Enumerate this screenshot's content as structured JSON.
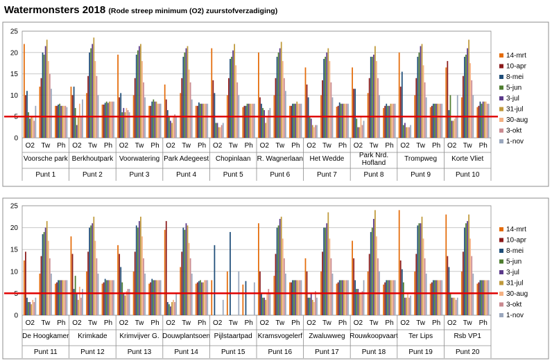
{
  "heading": {
    "title": "Watermonsters 2018",
    "subtitle": "(Rode streep minimum (O2) zuurstofverzadiging)"
  },
  "colors": {
    "series": [
      "#E46C0A",
      "#8B1A1A",
      "#1F4E79",
      "#4E7D2F",
      "#5B3A8A",
      "#C09A3C",
      "#F4B183",
      "#C98A90",
      "#9AA7BD"
    ],
    "threshold": "#E00000"
  },
  "chart_data": [
    {
      "type": "bar",
      "title": "Watermonsters 2018",
      "subtitle": "(Rode streep minimum (O2) zuurstofverzadiging)",
      "ylim": [
        0,
        25
      ],
      "yticks": [
        0,
        5,
        10,
        15,
        20,
        25
      ],
      "grid": true,
      "legend": "right",
      "threshold": 5,
      "series_names": [
        "14-mrt",
        "10-apr",
        "8-mei",
        "5-jun",
        "3-jul",
        "31-jul",
        "30-aug",
        "3-okt",
        "1-nov"
      ],
      "measures": [
        "O2",
        "Tw",
        "Ph"
      ],
      "locations": [
        {
          "name": "Voorsche park",
          "punt": "Punt 1",
          "values": {
            "O2": [
              22,
              10,
              11,
              6,
              4.5,
              5,
              5,
              4,
              7.5
            ],
            "Tw": [
              12,
              14,
              20,
              19.5,
              21.5,
              23,
              18,
              15,
              11.5
            ],
            "Ph": [
              7.5,
              7.5,
              7.8,
              8,
              7.5,
              7.5,
              7.5,
              7.5,
              7.2
            ]
          }
        },
        {
          "name": "Berkhoutpark",
          "punt": "Punt 2",
          "values": {
            "O2": [
              12,
              10,
              12,
              7,
              3,
              5,
              8,
              5,
              9
            ],
            "Tw": [
              10.5,
              14.5,
              20,
              21,
              22,
              23.5,
              18,
              14.5,
              10
            ],
            "Ph": [
              7.8,
              7.8,
              8.2,
              8.5,
              8.2,
              8.5,
              8.5,
              8.5,
              8.5
            ]
          }
        },
        {
          "name": "Voorwatering",
          "punt": "Punt 3",
          "values": {
            "O2": [
              19.5,
              9.5,
              10.5,
              6,
              7,
              6,
              7,
              6.5,
              6
            ],
            "Tw": [
              10,
              14,
              19.5,
              20.5,
              21.5,
              22,
              18,
              13,
              9.5
            ],
            "Ph": [
              7.5,
              7.5,
              8.5,
              9,
              8.5,
              8.5,
              8,
              8,
              8
            ]
          }
        },
        {
          "name": "Park Adegeest",
          "punt": "Punt 4",
          "values": {
            "O2": [
              12.5,
              9,
              6.5,
              5,
              4,
              3.5,
              5,
              5.5,
              5
            ],
            "Tw": [
              10.5,
              14,
              19,
              20,
              21,
              21.5,
              16,
              13,
              9
            ],
            "Ph": [
              7.5,
              7.5,
              8.3,
              8,
              8,
              8,
              8,
              8,
              8
            ]
          }
        },
        {
          "name": "Chopinlaan",
          "punt": "Punt 5",
          "values": {
            "O2": [
              21,
              13.5,
              10.5,
              3.5,
              3.5,
              2.5,
              2.5,
              3,
              3.5
            ],
            " Tw": [],
            "Tw": [
              10,
              14,
              18.5,
              19,
              20.5,
              22,
              17,
              13,
              10
            ],
            "Ph": [
              7.2,
              7.5,
              7.5,
              8,
              8,
              8,
              8,
              8,
              8
            ]
          }
        },
        {
          "name": "R. Wagnerlaan",
          "punt": "Punt 6",
          "values": {
            "O2": [
              20,
              9.5,
              8,
              7,
              6.5,
              3.5,
              5,
              6.5,
              7
            ],
            "Tw": [
              10,
              14,
              19,
              20,
              21,
              22.5,
              18,
              14,
              11
            ],
            " Ph": [],
            "Ph": [
              7.5,
              7.5,
              8,
              8,
              8,
              8.5,
              8,
              8,
              8
            ]
          }
        },
        {
          "name": "Het Wedde",
          "punt": "Punt 7",
          "values": {
            "O2": [
              16.5,
              12.5,
              9.5,
              5,
              4.5,
              3,
              2.5,
              3,
              3
            ],
            "Tw": [
              10,
              13.5,
              18.5,
              19,
              20,
              21,
              18,
              13,
              9.5
            ],
            "Ph": [
              7.3,
              7.5,
              8.3,
              8,
              8,
              8,
              8,
              8,
              8
            ]
          }
        },
        {
          "name": "Park Nrd.\nHofland",
          "punt": "Punt 8",
          "values": {
            "O2": [
              16.5,
              11.5,
              11.5,
              4.5,
              2.5,
              2.5,
              5,
              3,
              4
            ],
            "Tw": [
              10.5,
              14,
              19,
              19,
              19.5,
              21.5,
              18,
              14,
              10
            ],
            "Ph": [
              7,
              7.5,
              8,
              7.5,
              7.5,
              8,
              8,
              8,
              8
            ]
          }
        },
        {
          "name": "Trompweg",
          "punt": "Punt 9",
          "values": {
            "O2": [
              20,
              12,
              15.5,
              3,
              3.5,
              2.5,
              2.5,
              2.5,
              3
            ],
            "Tw": [
              10,
              14,
              19,
              20,
              21.5,
              22,
              17,
              13,
              9.5
            ],
            "Ph": [
              7.2,
              7.5,
              8,
              8,
              8,
              8,
              8,
              8,
              8
            ]
          }
        },
        {
          "name": "Korte Vliet",
          "punt": "Punt 10",
          "values": {
            "O2": [
              16.5,
              18,
              6.5,
              10,
              4,
              4,
              4.5,
              5,
              10
            ],
            "Tw": [
              9.5,
              14.5,
              19,
              19.5,
              21,
              23,
              17.5,
              13.5,
              10
            ],
            " Ph": [],
            "Ph": [
              7.2,
              7.5,
              8.5,
              8,
              8.5,
              8.5,
              8.5,
              8,
              8
            ]
          }
        }
      ]
    },
    {
      "type": "bar",
      "ylim": [
        0,
        25
      ],
      "yticks": [
        0,
        5,
        10,
        15,
        20,
        25
      ],
      "grid": true,
      "legend": "right",
      "threshold": 5,
      "series_names": [
        "14-mrt",
        "10-apr",
        "8-mei",
        "5-jun",
        "3-jul",
        "31-jul",
        "30-aug",
        "3-okt",
        "1-nov"
      ],
      "measures": [
        "O2",
        "Tw",
        "Ph"
      ],
      "locations": [
        {
          "name": "De Hoogkamer",
          "punt": "Punt 11",
          "values": {
            "O2": [
              12.5,
              14.5,
              4,
              3,
              3,
              2.5,
              3.5,
              3,
              4
            ],
            "Tw": [
              9.5,
              13.5,
              18.5,
              19,
              20,
              21.5,
              17,
              13,
              9.5
            ],
            "Ph": [
              7.2,
              7.5,
              8,
              8,
              8,
              8,
              8,
              8,
              8
            ]
          }
        },
        {
          "name": "Krimkade",
          "punt": "Punt 12",
          "values": {
            "O2": [
              18,
              14,
              6,
              9,
              5,
              3.5,
              6.5,
              4,
              6
            ],
            "Tw": [
              10,
              14.5,
              20,
              20.5,
              21,
              22.5,
              17,
              13,
              9.5
            ],
            "Ph": [
              7.2,
              7.5,
              8.3,
              8,
              8,
              8,
              8,
              8,
              8
            ]
          }
        },
        {
          "name": "Krimvijver G.",
          "punt": "Punt 13",
          "values": {
            "O2": [
              16,
              14,
              11,
              7.5,
              5,
              4.5,
              5.5,
              6,
              6
            ],
            "Tw": [
              10,
              14.5,
              20.5,
              20,
              21.5,
              22.5,
              18,
              13,
              9.5
            ],
            "Ph": [
              7.2,
              7.5,
              8.3,
              8,
              8,
              8,
              8,
              8,
              8
            ]
          }
        },
        {
          "name": "Douwplantsoen",
          "punt": "Punt 14",
          "values": {
            "O2": [
              19.5,
              21.5,
              3,
              2.5,
              2,
              3,
              3.5,
              3,
              5
            ],
            "Tw": [
              11,
              14.5,
              20,
              19.5,
              21,
              20.5,
              16.5,
              13,
              9.5
            ],
            "Ph": [
              7.2,
              7.5,
              7.8,
              8,
              7.5,
              7.5,
              8,
              8,
              8
            ]
          }
        },
        {
          "name": "Pijlstaartpad",
          "punt": "Punt 15",
          "values": {
            "O2": [
              8,
              0,
              16,
              0,
              0,
              0,
              0,
              0,
              3.5
            ],
            "Tw": [
              10,
              0,
              19,
              0,
              0,
              0,
              0,
              0,
              10
            ],
            "Ph": [
              7,
              0,
              7.8,
              0,
              0,
              0,
              0,
              0,
              7.5
            ]
          }
        },
        {
          "name": "Kramsvogelerf",
          "punt": "Punt 16",
          "values": {
            "O2": [
              21,
              10,
              5,
              4,
              4,
              3.5,
              5,
              6,
              5
            ],
            "Tw": [
              9,
              14,
              20,
              20.5,
              22,
              22.5,
              17.5,
              13,
              9.5
            ],
            "Ph": [
              7.5,
              7.5,
              8,
              8,
              8,
              8,
              8,
              8,
              8
            ]
          }
        },
        {
          "name": "Zwaluwweg",
          "punt": "Punt 17",
          "values": {
            "O2": [
              13,
              10,
              4,
              4,
              5,
              3.5,
              3,
              5.5,
              4
            ],
            "Tw": [
              10,
              14.5,
              20,
              20,
              21,
              23.5,
              17.5,
              13,
              9.5
            ],
            "Ph": [
              7.2,
              7.5,
              8,
              8,
              8,
              8,
              8,
              8,
              8
            ]
          }
        },
        {
          "name": "Rouwkoopvaart",
          "punt": "Punt 18",
          "values": {
            "O2": [
              17,
              13,
              8,
              6,
              6,
              5,
              5,
              5.5,
              8
            ],
            "Tw": [
              10,
              14,
              19,
              20,
              22,
              24,
              18,
              13,
              10
            ],
            "Ph": [
              7,
              7.5,
              8,
              8,
              8,
              8,
              8,
              8,
              8
            ]
          }
        },
        {
          "name": "Ter Lips",
          "punt": "Punt 19",
          "values": {
            "O2": [
              24,
              12.5,
              10.5,
              7.5,
              4,
              4,
              5,
              4,
              4.5
            ],
            "Tw": [
              10,
              14,
              20.5,
              21,
              21,
              22.5,
              17.5,
              13,
              9.5
            ],
            "Ph": [
              7.2,
              7.5,
              8,
              8,
              8,
              8,
              8,
              8,
              8
            ]
          }
        },
        {
          "name": "Rsb VP1",
          "punt": "Punt 20",
          "values": {
            "O2": [
              23,
              13.5,
              11,
              5,
              4,
              4,
              4,
              3.5,
              4
            ],
            "Tw": [
              10,
              14.5,
              20,
              21,
              21.5,
              23,
              17.5,
              13.5,
              9.5
            ],
            "Ph": [
              7.2,
              7.5,
              8,
              8,
              8,
              8,
              8,
              8,
              8
            ]
          }
        }
      ]
    }
  ]
}
